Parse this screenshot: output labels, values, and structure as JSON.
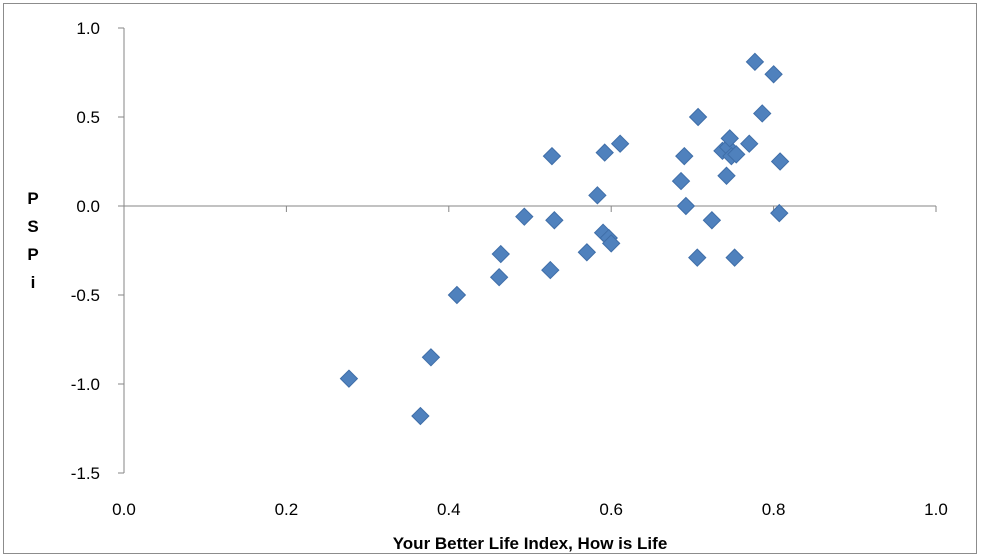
{
  "chart_data": {
    "type": "scatter",
    "xlabel": "Your Better Life Index, How is Life",
    "ylabel": "P S P i",
    "ylabel_lines": [
      "P",
      "S",
      "P",
      "i"
    ],
    "xlim": [
      0.0,
      1.0
    ],
    "ylim": [
      -1.5,
      1.0
    ],
    "xticks": [
      0.0,
      0.2,
      0.4,
      0.6,
      0.8,
      1.0
    ],
    "yticks": [
      1.0,
      0.5,
      0.0,
      -0.5,
      -1.0,
      -1.5
    ],
    "xtick_labels": [
      "0.0",
      "0.2",
      "0.4",
      "0.6",
      "0.8",
      "1.0"
    ],
    "ytick_labels": [
      "1.0",
      "0.5",
      "0.0",
      "-0.5",
      "-1.0",
      "-1.5"
    ],
    "grid": false,
    "legend": "none",
    "marker": "diamond",
    "color": "#4f81bd",
    "series": [
      {
        "points": [
          {
            "x": 0.277,
            "y": -0.97
          },
          {
            "x": 0.365,
            "y": -1.18
          },
          {
            "x": 0.378,
            "y": -0.85
          },
          {
            "x": 0.41,
            "y": -0.5
          },
          {
            "x": 0.462,
            "y": -0.4
          },
          {
            "x": 0.464,
            "y": -0.27
          },
          {
            "x": 0.493,
            "y": -0.06
          },
          {
            "x": 0.525,
            "y": -0.36
          },
          {
            "x": 0.527,
            "y": 0.28
          },
          {
            "x": 0.53,
            "y": -0.08
          },
          {
            "x": 0.57,
            "y": -0.26
          },
          {
            "x": 0.583,
            "y": 0.06
          },
          {
            "x": 0.59,
            "y": -0.15
          },
          {
            "x": 0.592,
            "y": 0.3
          },
          {
            "x": 0.597,
            "y": -0.18
          },
          {
            "x": 0.6,
            "y": -0.21
          },
          {
            "x": 0.611,
            "y": 0.35
          },
          {
            "x": 0.686,
            "y": 0.14
          },
          {
            "x": 0.69,
            "y": 0.28
          },
          {
            "x": 0.692,
            "y": 0.0
          },
          {
            "x": 0.706,
            "y": -0.29
          },
          {
            "x": 0.707,
            "y": 0.5
          },
          {
            "x": 0.724,
            "y": -0.08
          },
          {
            "x": 0.737,
            "y": 0.31
          },
          {
            "x": 0.742,
            "y": 0.17
          },
          {
            "x": 0.744,
            "y": 0.33
          },
          {
            "x": 0.746,
            "y": 0.38
          },
          {
            "x": 0.748,
            "y": 0.28
          },
          {
            "x": 0.752,
            "y": -0.29
          },
          {
            "x": 0.754,
            "y": 0.29
          },
          {
            "x": 0.77,
            "y": 0.35
          },
          {
            "x": 0.777,
            "y": 0.81
          },
          {
            "x": 0.786,
            "y": 0.52
          },
          {
            "x": 0.8,
            "y": 0.74
          },
          {
            "x": 0.807,
            "y": -0.04
          },
          {
            "x": 0.808,
            "y": 0.25
          }
        ]
      }
    ]
  }
}
